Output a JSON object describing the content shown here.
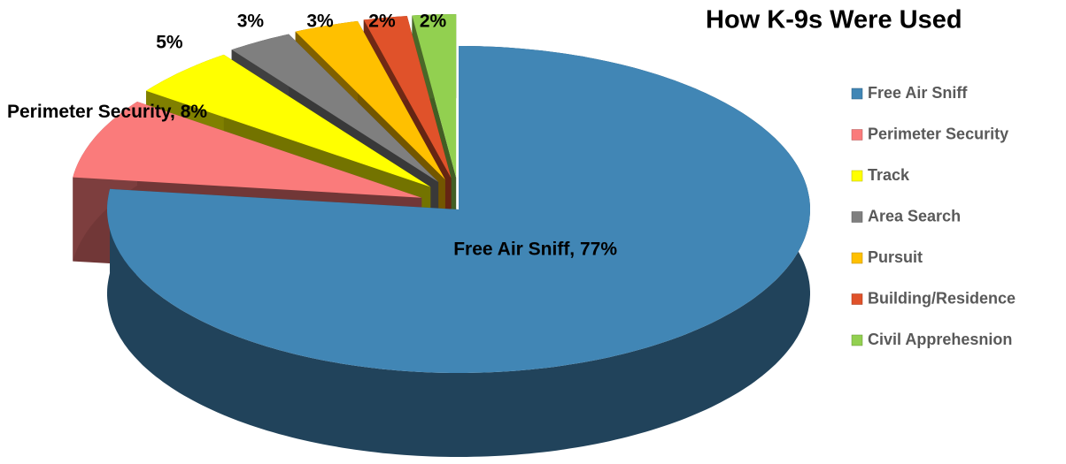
{
  "chart_data": {
    "type": "pie3d",
    "title": "How K-9s Were Used",
    "categories": [
      "Free Air Sniff",
      "Perimeter Security",
      "Track",
      "Area Search",
      "Pursuit",
      "Building/Residence",
      "Civil Apprehesnion"
    ],
    "values": [
      77,
      8,
      5,
      3,
      3,
      2,
      2
    ],
    "value_labels": [
      "Free Air Sniff, 77%",
      "Perimeter Security, 8%",
      "5%",
      "3%",
      "3%",
      "2%",
      "2%"
    ],
    "colors": [
      "#4186b5",
      "#fa7b7b",
      "#ffff00",
      "#7f7f7f",
      "#ffc000",
      "#e0522a",
      "#92d050"
    ],
    "legend": "right"
  }
}
